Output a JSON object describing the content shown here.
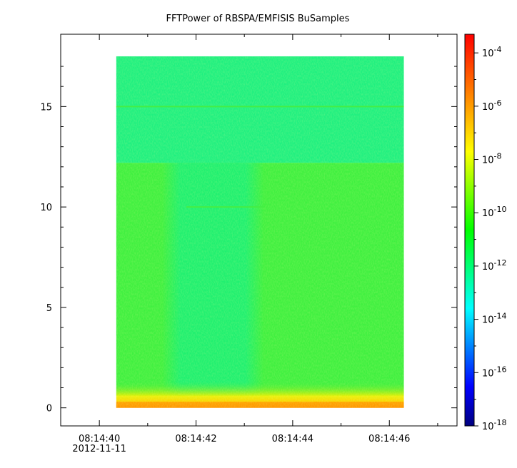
{
  "chart_data": {
    "type": "heatmap",
    "title": "FFTPower of RBSPA/EMFISIS  BuSamples",
    "xlabel": "",
    "ylabel": "",
    "x_ticks": [
      {
        "label": "08:14:40",
        "sublabel": "2012-11-11",
        "seconds": 40
      },
      {
        "label": "08:14:42",
        "sublabel": "",
        "seconds": 42
      },
      {
        "label": "08:14:44",
        "sublabel": "",
        "seconds": 44
      },
      {
        "label": "08:14:46",
        "sublabel": "",
        "seconds": 46
      }
    ],
    "x_minor_ticks_seconds": [
      41,
      43,
      45,
      47
    ],
    "xlim_seconds": [
      39.2,
      47.4
    ],
    "data_x_range_seconds": [
      40.35,
      46.3
    ],
    "y_ticks": [
      0,
      5,
      10,
      15
    ],
    "ylim": [
      -0.9,
      18.6
    ],
    "data_y_range": [
      0,
      17.5
    ],
    "colorbar": {
      "scale": "log",
      "ticks": [
        {
          "base": "10",
          "exp": "-4",
          "value": 0.0001
        },
        {
          "base": "10",
          "exp": "-6",
          "value": 1e-06
        },
        {
          "base": "10",
          "exp": "-8",
          "value": 1e-08
        },
        {
          "base": "10",
          "exp": "-10",
          "value": 1e-10
        },
        {
          "base": "10",
          "exp": "-12",
          "value": 1e-12
        },
        {
          "base": "10",
          "exp": "-14",
          "value": 1e-14
        },
        {
          "base": "10",
          "exp": "-16",
          "value": 1e-16
        },
        {
          "base": "10",
          "exp": "-18",
          "value": 1e-18
        }
      ],
      "range_log10": [
        -18,
        -3.3
      ],
      "colormap": [
        "#00007f",
        "#0000ff",
        "#007fff",
        "#00ffff",
        "#00ff7f",
        "#00ff00",
        "#7fff00",
        "#ffff00",
        "#ffaa00",
        "#ff5500",
        "#ff0000"
      ]
    },
    "regions": [
      {
        "x": [
          40.35,
          46.3
        ],
        "y": [
          12.2,
          17.5
        ],
        "power_log10": -12.2,
        "color": "#20f080"
      },
      {
        "x": [
          40.35,
          46.3
        ],
        "y": [
          0.6,
          12.2
        ],
        "power_log10": -10.6,
        "color": "#40f040"
      },
      {
        "x": [
          41.3,
          43.4
        ],
        "y": [
          0.6,
          12.2
        ],
        "power_log10": -11.6,
        "color": "#20f070"
      },
      {
        "x": [
          40.35,
          46.3
        ],
        "y": [
          0.0,
          1.3
        ],
        "power_log10": -8.5,
        "color": "#ccf000"
      },
      {
        "x": [
          40.35,
          46.3
        ],
        "y": [
          0.0,
          0.3
        ],
        "power_log10": -6.5,
        "color": "#ff9900"
      }
    ],
    "lines": [
      {
        "y": 15.0,
        "x": [
          40.35,
          46.3
        ],
        "power_log10": -10.8,
        "color": "#44ee44"
      },
      {
        "y": 10.0,
        "x": [
          41.8,
          43.4
        ],
        "power_log10": -10.8,
        "color": "#44ee44"
      }
    ]
  }
}
